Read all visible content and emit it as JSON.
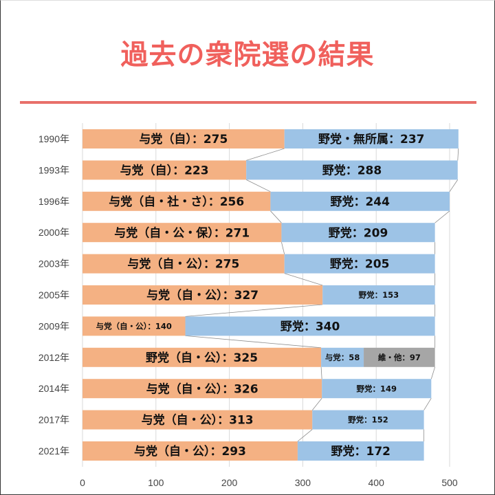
{
  "title": "過去の衆院選の結果",
  "colors": {
    "ruling": "#f4b183",
    "opposition": "#9dc3e6",
    "other": "#a6a6a6",
    "title": "#f0605c",
    "grid": "#d9d9d9",
    "connector": "#8c8c8c"
  },
  "chart_data": {
    "type": "bar",
    "stacked": true,
    "orientation": "horizontal",
    "title": "過去の衆院選の結果",
    "xlim": [
      0,
      500
    ],
    "xticks": [
      0,
      100,
      200,
      300,
      400,
      500
    ],
    "xtick_labels": [
      "0",
      "100",
      "200",
      "300",
      "400",
      "500"
    ],
    "grid": true,
    "categories": [
      "1990年",
      "1993年",
      "1996年",
      "2000年",
      "2003年",
      "2005年",
      "2009年",
      "2012年",
      "2014年",
      "2017年",
      "2021年"
    ],
    "rows": [
      {
        "year": "1990年",
        "segments": [
          {
            "label": "与党（自）：275",
            "value": 275,
            "kind": "ruling"
          },
          {
            "label": "野党・無所属：237",
            "value": 237,
            "kind": "opposition"
          }
        ]
      },
      {
        "year": "1993年",
        "segments": [
          {
            "label": "与党（自）：223",
            "value": 223,
            "kind": "ruling"
          },
          {
            "label": "野党：288",
            "value": 288,
            "kind": "opposition"
          }
        ]
      },
      {
        "year": "1996年",
        "segments": [
          {
            "label": "与党（自・社・さ）：256",
            "value": 256,
            "kind": "ruling"
          },
          {
            "label": "野党：244",
            "value": 244,
            "kind": "opposition"
          }
        ]
      },
      {
        "year": "2000年",
        "segments": [
          {
            "label": "与党（自・公・保）：271",
            "value": 271,
            "kind": "ruling"
          },
          {
            "label": "野党：209",
            "value": 209,
            "kind": "opposition"
          }
        ]
      },
      {
        "year": "2003年",
        "segments": [
          {
            "label": "与党（自・公）：275",
            "value": 275,
            "kind": "ruling"
          },
          {
            "label": "野党：205",
            "value": 205,
            "kind": "opposition"
          }
        ]
      },
      {
        "year": "2005年",
        "segments": [
          {
            "label": "与党（自・公）：327",
            "value": 327,
            "kind": "ruling"
          },
          {
            "label": "野党：153",
            "value": 153,
            "kind": "opposition"
          }
        ]
      },
      {
        "year": "2009年",
        "segments": [
          {
            "label": "与党（自・公）：140",
            "value": 140,
            "kind": "ruling"
          },
          {
            "label": "野党：340",
            "value": 340,
            "kind": "opposition"
          }
        ]
      },
      {
        "year": "2012年",
        "segments": [
          {
            "label": "野党（自・公）：325",
            "value": 325,
            "kind": "ruling"
          },
          {
            "label": "与党：58",
            "value": 58,
            "kind": "opposition"
          },
          {
            "label": "維・他：97",
            "value": 97,
            "kind": "other"
          }
        ]
      },
      {
        "year": "2014年",
        "segments": [
          {
            "label": "与党（自・公）：326",
            "value": 326,
            "kind": "ruling"
          },
          {
            "label": "野党：149",
            "value": 149,
            "kind": "opposition"
          }
        ]
      },
      {
        "year": "2017年",
        "segments": [
          {
            "label": "与党（自・公）：313",
            "value": 313,
            "kind": "ruling"
          },
          {
            "label": "野党：152",
            "value": 152,
            "kind": "opposition"
          }
        ]
      },
      {
        "year": "2021年",
        "segments": [
          {
            "label": "与党（自・公）：293",
            "value": 293,
            "kind": "ruling"
          },
          {
            "label": "野党：172",
            "value": 172,
            "kind": "opposition"
          }
        ]
      }
    ]
  }
}
